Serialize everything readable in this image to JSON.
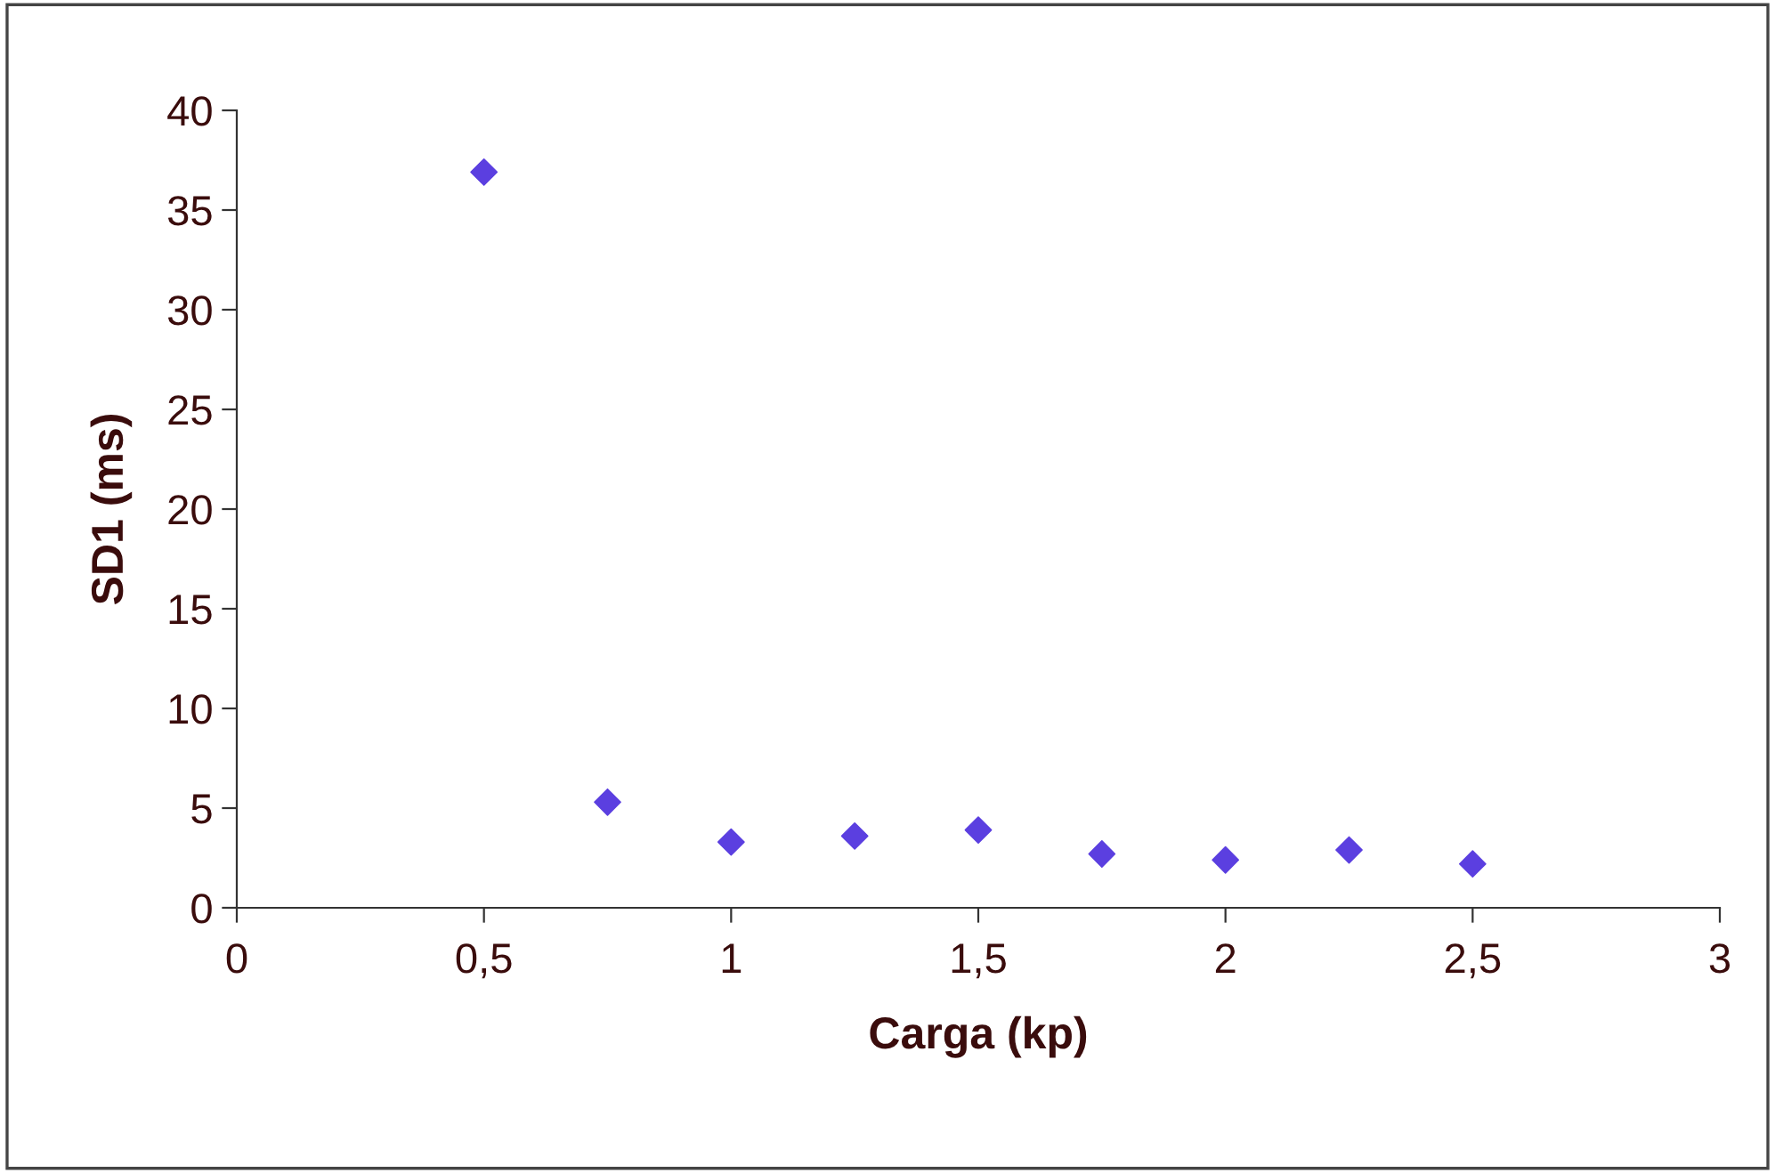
{
  "chart_data": {
    "type": "scatter",
    "xlabel": "Carga (kp)",
    "ylabel": "SD1 (ms)",
    "x": [
      0.5,
      0.75,
      1,
      1.25,
      1.5,
      1.75,
      2,
      2.25,
      2.5
    ],
    "series": [
      {
        "color": "#5b3fe0",
        "values": [
          36.9,
          5.3,
          3.3,
          3.6,
          3.9,
          2.7,
          2.4,
          2.9,
          2.2
        ]
      }
    ],
    "xlim": [
      0,
      3
    ],
    "ylim": [
      0,
      40
    ],
    "xticks": [
      0,
      {
        "value": 0.5,
        "label": "0,5"
      },
      1,
      {
        "value": 1.5,
        "label": "1,5"
      },
      2,
      {
        "value": 2.5,
        "label": "2,5"
      },
      3
    ],
    "yticks": [
      0,
      5,
      10,
      15,
      20,
      25,
      30,
      35,
      40
    ],
    "marker": "diamond",
    "grid": false,
    "legend": false
  }
}
